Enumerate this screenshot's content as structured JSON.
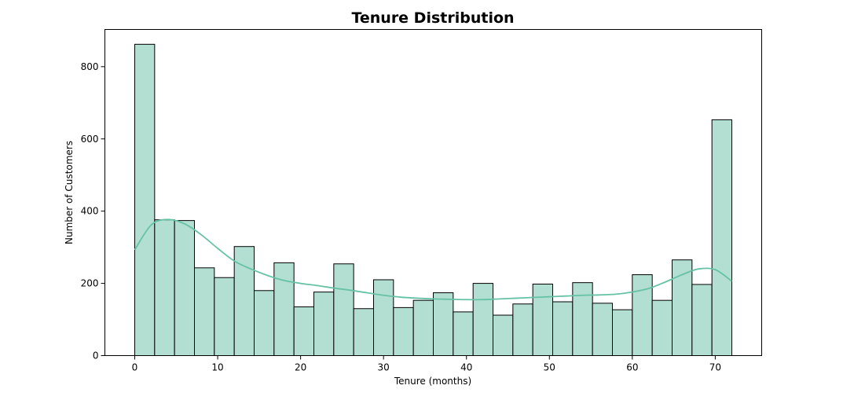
{
  "chart_data": {
    "type": "bar",
    "title": "Tenure Distribution",
    "xlabel": "Tenure (months)",
    "ylabel": "Number of Customers",
    "xlim": [
      -3.6,
      75.6
    ],
    "ylim": [
      0,
      903
    ],
    "xticks": [
      0,
      10,
      20,
      30,
      40,
      50,
      60,
      70
    ],
    "yticks": [
      0,
      200,
      400,
      600,
      800
    ],
    "bin_width": 2.4,
    "bin_start": 0,
    "values": [
      862,
      376,
      374,
      243,
      216,
      302,
      180,
      257,
      135,
      176,
      254,
      130,
      210,
      133,
      153,
      174,
      121,
      200,
      112,
      143,
      198,
      149,
      202,
      145,
      127,
      224,
      153,
      265,
      197,
      653
    ],
    "kde_x": [
      0,
      2,
      4,
      6,
      8,
      10,
      12,
      14,
      16,
      18,
      20,
      22,
      24,
      26,
      28,
      30,
      32,
      34,
      36,
      38,
      40,
      42,
      44,
      46,
      48,
      50,
      52,
      54,
      56,
      58,
      60,
      62,
      64,
      66,
      68,
      70,
      72
    ],
    "kde_y": [
      293,
      362,
      377,
      365,
      335,
      297,
      262,
      240,
      222,
      208,
      200,
      194,
      187,
      181,
      174,
      167,
      162,
      159,
      157,
      156,
      155,
      155,
      157,
      159,
      161,
      163,
      165,
      167,
      168,
      170,
      176,
      186,
      204,
      224,
      240,
      238,
      206
    ],
    "colors": {
      "bar_fill": "#b2dfd1",
      "bar_edge": "#000000",
      "kde_line": "#66c2a5"
    },
    "grid": false
  }
}
